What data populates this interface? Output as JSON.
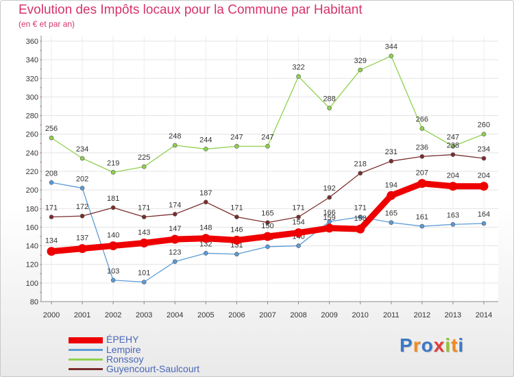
{
  "title": "Evolution des Impôts locaux pour la Commune par Habitant",
  "subtitle": "(en € et par an)",
  "logo": {
    "letters": [
      "P",
      "r",
      "o",
      "x",
      "i",
      "t",
      "i"
    ],
    "colors": [
      "#3b78c6",
      "#f08a1f",
      "#3b78c6",
      "#e23b3b",
      "#93c23a",
      "#f08a1f",
      "#3b78c6"
    ]
  },
  "chart_data": {
    "type": "line",
    "title": "Evolution des Impôts locaux pour la Commune par Habitant",
    "subtitle": "(en € et par an)",
    "x": [
      "2000",
      "2001",
      "2002",
      "2003",
      "2004",
      "2005",
      "2006",
      "2007",
      "2008",
      "2009",
      "2010",
      "2011",
      "2012",
      "2013",
      "2014"
    ],
    "ylim": [
      80,
      360
    ],
    "yticks": [
      80,
      100,
      120,
      140,
      160,
      180,
      200,
      220,
      240,
      260,
      280,
      300,
      320,
      340,
      360
    ],
    "grid": true,
    "legend_position": "bottom-left",
    "series": [
      {
        "name": "Ronssoy",
        "color": "#8fd14f",
        "values": [
          256,
          234,
          219,
          225,
          248,
          244,
          247,
          247,
          322,
          288,
          329,
          344,
          266,
          247,
          260
        ],
        "labels": [
          "256",
          "234",
          "219",
          "225",
          "248",
          "244",
          "247",
          "247",
          "322",
          "288",
          "329",
          "344",
          "266",
          "247",
          "260"
        ]
      },
      {
        "name": "Lempire",
        "color": "#5b9bd5",
        "values": [
          208,
          202,
          103,
          101,
          123,
          132,
          131,
          139,
          140,
          166,
          171,
          165,
          161,
          163,
          164
        ],
        "labels": [
          "208",
          "202",
          "103",
          "101",
          "123",
          "132",
          "131",
          "139",
          "140",
          "166",
          "171",
          "165",
          "161",
          "163",
          "164"
        ]
      },
      {
        "name": "Guyencourt-Saulcourt",
        "color": "#7a2c2c",
        "values": [
          171,
          172,
          181,
          171,
          174,
          187,
          171,
          165,
          171,
          192,
          218,
          231,
          236,
          238,
          234
        ],
        "labels": [
          "171",
          "172",
          "181",
          "171",
          "174",
          "187",
          "171",
          "165",
          "171",
          "192",
          "218",
          "231",
          "236",
          "238",
          "234"
        ]
      },
      {
        "name": "ÉPEHY",
        "color": "#ee0000",
        "values": [
          134,
          137,
          140,
          143,
          147,
          148,
          146,
          150,
          154,
          159,
          158,
          194,
          207,
          204,
          204
        ],
        "labels": [
          "134",
          "137",
          "140",
          "143",
          "147",
          "148",
          "146",
          "150",
          "154",
          "159",
          "158",
          "194",
          "207",
          "204",
          "204"
        ]
      }
    ]
  },
  "legend": [
    {
      "name": "ÉPEHY",
      "color": "#ee0000"
    },
    {
      "name": "Lempire",
      "color": "#5b9bd5"
    },
    {
      "name": "Ronssoy",
      "color": "#8fd14f"
    },
    {
      "name": "Guyencourt-Saulcourt",
      "color": "#7a2c2c"
    }
  ]
}
